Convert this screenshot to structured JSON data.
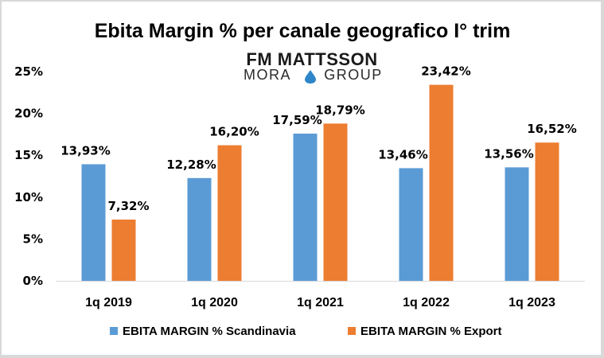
{
  "logo": {
    "line1": "FM MATTSSON",
    "line2_left": "MORA",
    "line2_right": "GROUP",
    "drop_color": "#2e86c9"
  },
  "chart_data": {
    "type": "bar",
    "title": "Ebita Margin % per canale geografico I° trim",
    "xlabel": "",
    "ylabel": "",
    "categories": [
      "1q 2019",
      "1q 2020",
      "1q 2021",
      "1q 2022",
      "1q 2023"
    ],
    "series": [
      {
        "name": "EBITA MARGIN % Scandinavia",
        "color": "#5b9bd5",
        "values": [
          13.93,
          12.28,
          17.59,
          13.46,
          13.56
        ],
        "labels": [
          "13,93%",
          "12,28%",
          "17,59%",
          "13,46%",
          "13,56%"
        ]
      },
      {
        "name": "EBITA MARGIN % Export",
        "color": "#ed7d31",
        "values": [
          7.32,
          16.2,
          18.79,
          23.42,
          16.52
        ],
        "labels": [
          "7,32%",
          "16,20%",
          "18,79%",
          "23,42%",
          "16,52%"
        ]
      }
    ],
    "ylim": [
      0,
      25
    ],
    "yticks": [
      0,
      5,
      10,
      15,
      20,
      25
    ],
    "ytick_labels": [
      "0%",
      "5%",
      "10%",
      "15%",
      "20%",
      "25%"
    ],
    "grid": false,
    "legend_position": "bottom",
    "axis_color": "#d9d9d9"
  }
}
